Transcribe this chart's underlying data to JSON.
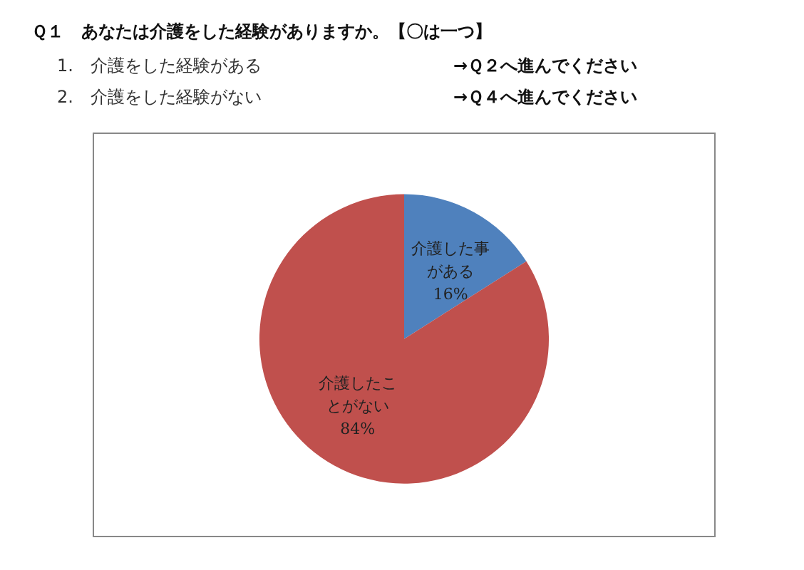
{
  "chart_data": {
    "type": "pie",
    "title": "Ｑ１　あなたは介護をした経験がありますか。【〇は一つ】",
    "annotations": [
      "1.　介護をした経験がある",
      "→Ｑ２へ進んでください",
      "2.　介護をした経験がない",
      "→Ｑ４へ進んでください"
    ],
    "categories": [
      "介護した事がある",
      "介護したことがない"
    ],
    "values": [
      16,
      84
    ],
    "colors": [
      "#4f81bd",
      "#c0504d"
    ],
    "value_labels": [
      "16%",
      "84%"
    ],
    "legend": false
  }
}
